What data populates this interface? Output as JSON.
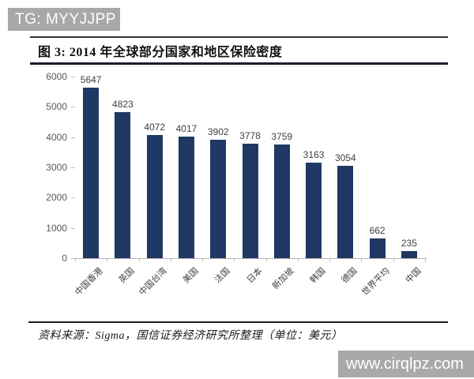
{
  "badge": {
    "text": "TG: MYYJJPP"
  },
  "figure": {
    "title": "图 3:  2014 年全球部分国家和地区保险密度"
  },
  "chart_data": {
    "type": "bar",
    "title": "2014 年全球部分国家和地区保险密度",
    "categories": [
      "中国香港",
      "英国",
      "中国台湾",
      "美国",
      "法国",
      "日本",
      "新加坡",
      "韩国",
      "德国",
      "世界平均",
      "中国"
    ],
    "values": [
      5647,
      4823,
      4072,
      4017,
      3902,
      3778,
      3759,
      3163,
      3054,
      662,
      235
    ],
    "xlabel": "",
    "ylabel": "",
    "ylim": [
      0,
      6000
    ],
    "ytick_step": 1000,
    "yticks": [
      0,
      1000,
      2000,
      3000,
      4000,
      5000,
      6000
    ],
    "grid": false,
    "legend": null,
    "data_labels": true,
    "unit": "美元",
    "bar_color": "#1f3864"
  },
  "source": {
    "text": "资料来源：Sigma，国信证券经济研究所整理（单位：美元）"
  },
  "watermark": {
    "text": "www.cirqlpz.com"
  },
  "colors": {
    "bar": "#1f3864",
    "badge_bg": "#a8a8a8",
    "watermark_bg": "#a9a9a9",
    "axis_line": "#b3b3b3",
    "tick": "#bfbfbf",
    "ytick_label": "#595959",
    "value_label": "#3f3f3f"
  }
}
